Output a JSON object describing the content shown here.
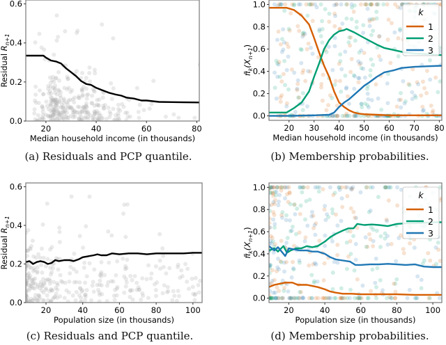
{
  "chart_data": [
    {
      "id": "a",
      "type": "scatter",
      "caption": "(a) Residuals and PCP quantile.",
      "xlabel": "Median household income (in thousands)",
      "ylabel": "Residual R_{n+1}",
      "xlim": [
        12,
        81
      ],
      "ylim": [
        0,
        0.62
      ],
      "xticks": [
        20,
        40,
        60,
        80
      ],
      "yticks": [
        0.0,
        0.2,
        0.4,
        0.6
      ],
      "scatter_color": "#aaaaaa",
      "line": {
        "name": "PCP quantile",
        "color": "#000000",
        "x": [
          12,
          19,
          20,
          22,
          24,
          26,
          28,
          30,
          32,
          34,
          36,
          38,
          40,
          42,
          45,
          48,
          50,
          52,
          55,
          58,
          60,
          65,
          70,
          75,
          81
        ],
        "y": [
          0.335,
          0.335,
          0.325,
          0.31,
          0.305,
          0.295,
          0.27,
          0.25,
          0.23,
          0.205,
          0.19,
          0.185,
          0.17,
          0.16,
          0.145,
          0.135,
          0.13,
          0.12,
          0.115,
          0.105,
          0.105,
          0.098,
          0.097,
          0.096,
          0.095
        ]
      }
    },
    {
      "id": "b",
      "type": "line",
      "caption": "(b) Membership probabilities.",
      "xlabel": "Median household income (in thousands)",
      "ylabel": "π̃_k(X_{n+1})",
      "xlim": [
        12,
        81
      ],
      "ylim": [
        -0.04,
        1.04
      ],
      "xticks": [
        20,
        30,
        40,
        50,
        60,
        70,
        80
      ],
      "yticks": [
        0.0,
        0.2,
        0.4,
        0.6,
        0.8,
        1.0
      ],
      "legend": {
        "title": "k",
        "position": "top-right"
      },
      "series": [
        {
          "name": "1",
          "color": "#d55e00",
          "x": [
            12,
            19,
            22,
            25,
            28,
            30,
            32,
            34,
            36,
            38,
            40,
            42,
            44,
            46,
            48,
            50,
            55,
            60,
            70,
            81
          ],
          "y": [
            0.97,
            0.97,
            0.95,
            0.9,
            0.82,
            0.7,
            0.57,
            0.45,
            0.35,
            0.22,
            0.12,
            0.08,
            0.05,
            0.03,
            0.02,
            0.015,
            0.01,
            0.005,
            0.005,
            0.005
          ]
        },
        {
          "name": "2",
          "color": "#009e73",
          "x": [
            12,
            19,
            22,
            25,
            28,
            30,
            32,
            34,
            36,
            38,
            40,
            42,
            43,
            46,
            50,
            55,
            58,
            62,
            66,
            70,
            75,
            81
          ],
          "y": [
            0.03,
            0.03,
            0.07,
            0.12,
            0.22,
            0.35,
            0.47,
            0.6,
            0.68,
            0.73,
            0.76,
            0.77,
            0.78,
            0.75,
            0.7,
            0.64,
            0.61,
            0.59,
            0.57,
            0.56,
            0.555,
            0.545
          ]
        },
        {
          "name": "3",
          "color": "#1f77b4",
          "x": [
            12,
            20,
            30,
            36,
            38,
            40,
            42,
            44,
            46,
            48,
            50,
            52,
            55,
            58,
            60,
            62,
            65,
            70,
            75,
            81
          ],
          "y": [
            0.0,
            0.0,
            0.005,
            0.01,
            0.03,
            0.08,
            0.12,
            0.15,
            0.19,
            0.23,
            0.27,
            0.3,
            0.35,
            0.39,
            0.4,
            0.41,
            0.43,
            0.44,
            0.445,
            0.45
          ]
        }
      ]
    },
    {
      "id": "c",
      "type": "scatter",
      "caption": "(c) Residuals and PCP quantile.",
      "xlabel": "Population size (in thousands)",
      "ylabel": "Residual R_{n+1}",
      "xlim": [
        9,
        105
      ],
      "ylim": [
        0,
        0.62
      ],
      "xticks": [
        20,
        40,
        60,
        80,
        100
      ],
      "yticks": [
        0.0,
        0.2,
        0.4,
        0.6
      ],
      "scatter_color": "#aaaaaa",
      "line": {
        "name": "PCP quantile",
        "color": "#000000",
        "x": [
          9,
          11,
          13,
          15,
          17,
          19,
          21,
          23,
          25,
          27,
          30,
          33,
          35,
          38,
          40,
          43,
          46,
          48,
          50,
          53,
          56,
          60,
          65,
          70,
          75,
          80,
          85,
          90,
          95,
          100,
          105
        ],
        "y": [
          0.21,
          0.215,
          0.2,
          0.21,
          0.215,
          0.21,
          0.2,
          0.205,
          0.22,
          0.215,
          0.22,
          0.22,
          0.215,
          0.225,
          0.235,
          0.24,
          0.245,
          0.25,
          0.245,
          0.245,
          0.255,
          0.25,
          0.255,
          0.255,
          0.25,
          0.255,
          0.255,
          0.255,
          0.255,
          0.258,
          0.258
        ]
      }
    },
    {
      "id": "d",
      "type": "line",
      "caption": "(d) Membership probabilities.",
      "xlabel": "Population size (in thousands)",
      "ylabel": "π̃_k(X_{n+1})",
      "xlim": [
        9,
        105
      ],
      "ylim": [
        -0.04,
        1.04
      ],
      "xticks": [
        20,
        40,
        60,
        80,
        100
      ],
      "yticks": [
        0.0,
        0.2,
        0.4,
        0.6,
        0.8,
        1.0
      ],
      "legend": {
        "title": "k",
        "position": "top-right"
      },
      "series": [
        {
          "name": "1",
          "color": "#d55e00",
          "x": [
            9,
            12,
            15,
            18,
            20,
            22,
            25,
            28,
            30,
            33,
            36,
            40,
            43,
            46,
            50,
            55,
            60,
            70,
            80,
            90,
            105
          ],
          "y": [
            0.1,
            0.12,
            0.13,
            0.14,
            0.14,
            0.14,
            0.12,
            0.12,
            0.12,
            0.11,
            0.1,
            0.08,
            0.06,
            0.05,
            0.04,
            0.04,
            0.035,
            0.035,
            0.035,
            0.03,
            0.03
          ]
        },
        {
          "name": "2",
          "color": "#009e73",
          "x": [
            9,
            12,
            14,
            17,
            19,
            21,
            24,
            27,
            30,
            33,
            36,
            40,
            43,
            46,
            50,
            53,
            56,
            58,
            62,
            66,
            70,
            75,
            80,
            85,
            90,
            95,
            100,
            105
          ],
          "y": [
            0.43,
            0.45,
            0.42,
            0.47,
            0.41,
            0.43,
            0.45,
            0.45,
            0.47,
            0.46,
            0.47,
            0.51,
            0.55,
            0.58,
            0.61,
            0.63,
            0.63,
            0.67,
            0.66,
            0.665,
            0.66,
            0.65,
            0.67,
            0.675,
            0.675,
            0.68,
            0.685,
            0.685
          ]
        },
        {
          "name": "3",
          "color": "#1f77b4",
          "x": [
            9,
            12,
            14,
            16,
            18,
            20,
            23,
            26,
            30,
            33,
            36,
            40,
            43,
            46,
            50,
            54,
            57,
            60,
            65,
            70,
            75,
            80,
            85,
            90,
            95,
            100,
            105
          ],
          "y": [
            0.47,
            0.43,
            0.46,
            0.42,
            0.38,
            0.45,
            0.44,
            0.43,
            0.43,
            0.42,
            0.42,
            0.4,
            0.37,
            0.35,
            0.34,
            0.33,
            0.3,
            0.3,
            0.305,
            0.305,
            0.31,
            0.305,
            0.3,
            0.305,
            0.285,
            0.28,
            0.28
          ]
        }
      ]
    }
  ]
}
